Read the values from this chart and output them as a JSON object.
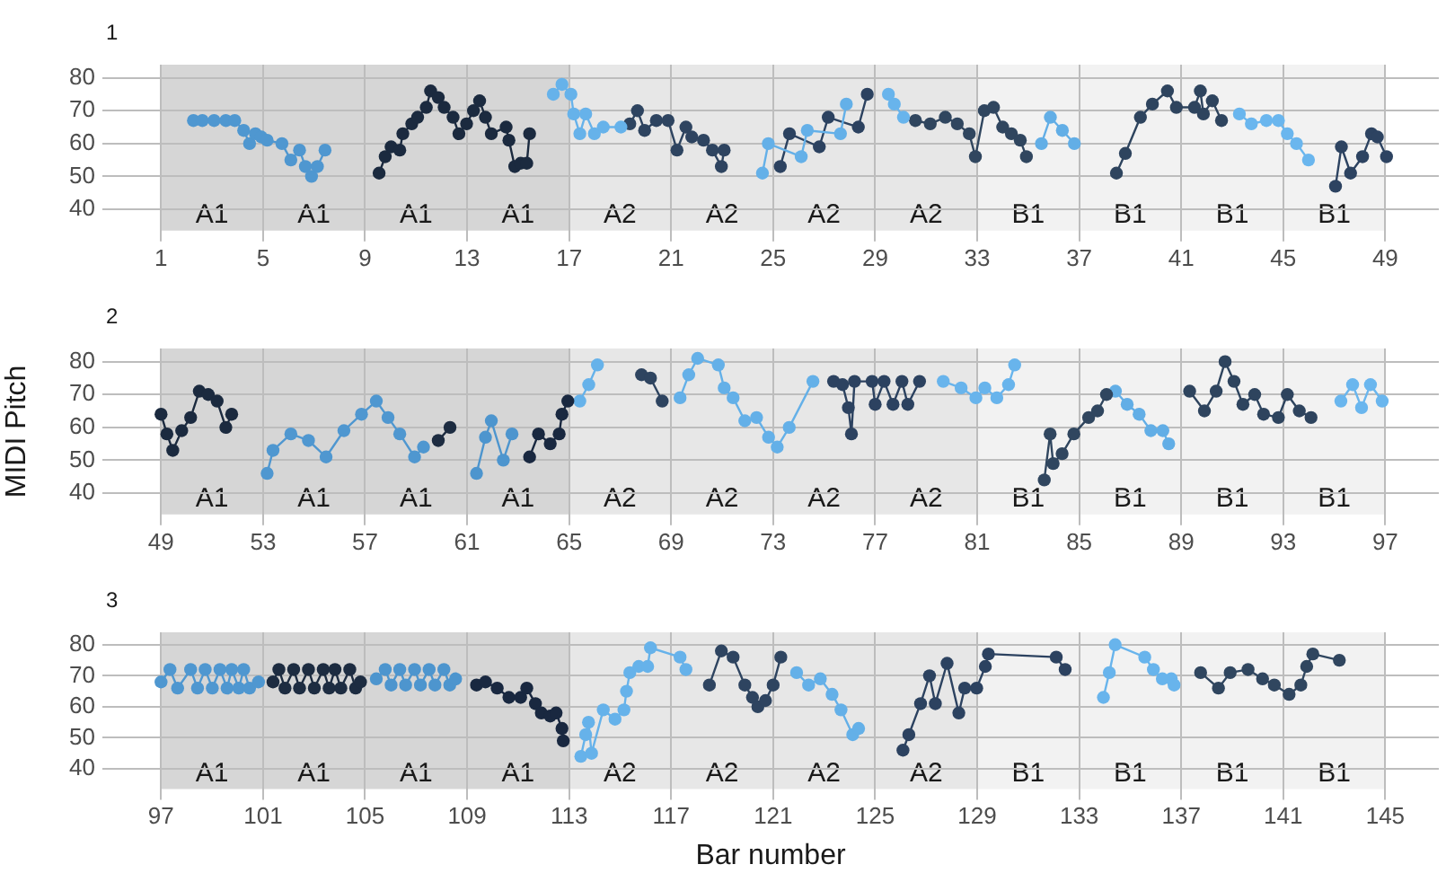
{
  "chart_data": [
    {
      "type": "line",
      "title": "1",
      "xlim": [
        -1.3,
        51.1
      ],
      "ylim": [
        33.5,
        84
      ],
      "xticks": [
        1,
        5,
        9,
        13,
        17,
        21,
        25,
        29,
        33,
        37,
        41,
        45,
        49
      ],
      "yticks": [
        40,
        50,
        60,
        70,
        80
      ],
      "grid": true,
      "marker": "circle",
      "line_style": "solid",
      "bands": [
        {
          "axis": "x",
          "from": 1,
          "to": 5,
          "label": "A1",
          "color": "#d6d6d6"
        },
        {
          "axis": "x",
          "from": 5,
          "to": 9,
          "label": "A1",
          "color": "#d6d6d6"
        },
        {
          "axis": "x",
          "from": 9,
          "to": 13,
          "label": "A1",
          "color": "#d6d6d6"
        },
        {
          "axis": "x",
          "from": 13,
          "to": 17,
          "label": "A1",
          "color": "#d6d6d6"
        },
        {
          "axis": "x",
          "from": 17,
          "to": 21,
          "label": "A2",
          "color": "#e7e7e7"
        },
        {
          "axis": "x",
          "from": 21,
          "to": 25,
          "label": "A2",
          "color": "#e7e7e7"
        },
        {
          "axis": "x",
          "from": 25,
          "to": 29,
          "label": "A2",
          "color": "#e7e7e7"
        },
        {
          "axis": "x",
          "from": 29,
          "to": 33,
          "label": "A2",
          "color": "#e7e7e7"
        },
        {
          "axis": "x",
          "from": 33,
          "to": 37,
          "label": "B1",
          "color": "#f2f2f2"
        },
        {
          "axis": "x",
          "from": 37,
          "to": 41,
          "label": "B1",
          "color": "#f2f2f2"
        },
        {
          "axis": "x",
          "from": 41,
          "to": 45,
          "label": "B1",
          "color": "#f2f2f2"
        },
        {
          "axis": "x",
          "from": 45,
          "to": 49,
          "label": "B1",
          "color": "#f2f2f2"
        }
      ],
      "series": [
        {
          "color": "#4f97d0",
          "x": [
            2.27,
            2.62,
            3.08,
            3.54,
            3.89,
            4.24,
            4.47,
            4.7,
            4.93,
            5.16,
            5.74,
            6.09,
            6.43,
            6.66,
            6.9,
            7.13,
            7.43
          ],
          "values": [
            67,
            67,
            67,
            67,
            67,
            64,
            60,
            63,
            62,
            61,
            60,
            55,
            58,
            53,
            50,
            53,
            58
          ]
        },
        {
          "color": "#1b2a3f",
          "x": [
            9.55,
            9.79,
            10.02,
            10.36,
            10.48,
            10.83,
            11.06,
            11.4,
            11.57,
            11.87,
            12.1,
            12.45,
            12.68,
            12.98,
            13.25,
            13.49,
            13.72,
            13.95,
            14.53,
            14.64,
            14.87,
            15.1,
            15.34,
            15.45
          ],
          "values": [
            51,
            56,
            59,
            58,
            63,
            66,
            68,
            71,
            76,
            74,
            71,
            68,
            63,
            66,
            70,
            73,
            68,
            63,
            65,
            61,
            53,
            54,
            54,
            63
          ]
        },
        {
          "color": "#66b2ea",
          "x": [
            16.38,
            16.72,
            17.07,
            17.18,
            17.42,
            17.65,
            17.99,
            18.34,
            19.03
          ],
          "values": [
            75,
            78,
            75,
            69,
            63,
            69,
            63,
            65,
            65
          ]
        },
        {
          "color": "#2e4460",
          "x": [
            19.38,
            19.68,
            19.96,
            20.42,
            20.88,
            21.23,
            21.58,
            21.81,
            22.27,
            22.62,
            22.97,
            23.08
          ],
          "values": [
            66,
            70,
            64,
            67,
            67,
            58,
            65,
            62,
            61,
            58,
            53,
            58
          ]
        },
        {
          "color": "#64b0e8",
          "x": [
            24.58,
            24.81,
            26.1,
            26.34,
            27.64,
            27.87
          ],
          "values": [
            51,
            60,
            56,
            64,
            63,
            72
          ]
        },
        {
          "color": "#2c4260",
          "x": [
            25.28,
            25.64,
            26.81,
            27.16,
            28.34,
            28.69
          ],
          "values": [
            53,
            63,
            59,
            68,
            65,
            75
          ]
        },
        {
          "color": "#68b4ec",
          "x": [
            29.52,
            29.75,
            30.11
          ],
          "values": [
            75,
            72,
            68
          ]
        },
        {
          "color": "#30465f",
          "x": [
            30.58,
            31.16,
            31.75,
            32.22,
            32.69,
            32.93,
            33.28,
            33.64,
            34.0,
            34.34,
            34.69,
            34.93
          ],
          "values": [
            67,
            66,
            68,
            66,
            63,
            56,
            70,
            71,
            65,
            63,
            61,
            56
          ]
        },
        {
          "color": "#62aee6",
          "x": [
            35.52,
            35.87,
            36.34,
            36.81
          ],
          "values": [
            60,
            68,
            64,
            60
          ]
        },
        {
          "color": "#2e445e",
          "x": [
            38.46,
            38.81,
            39.4,
            39.87,
            40.46,
            40.81,
            41.52,
            41.75,
            41.87,
            42.22,
            42.58
          ],
          "values": [
            51,
            57,
            68,
            72,
            76,
            71,
            71,
            76,
            69,
            73,
            67
          ]
        },
        {
          "color": "#6ab6ee",
          "x": [
            43.28,
            43.75,
            44.34,
            44.81,
            45.16,
            45.52,
            45.99
          ],
          "values": [
            69,
            66,
            67,
            67,
            63,
            60,
            55
          ]
        },
        {
          "color": "#2d4361",
          "x": [
            47.05,
            47.28,
            47.64,
            48.11,
            48.46,
            48.69,
            49.05
          ],
          "values": [
            47,
            59,
            51,
            56,
            63,
            62,
            56
          ]
        }
      ]
    },
    {
      "type": "line",
      "title": "2",
      "ylabel": "MIDI Pitch",
      "xlim": [
        46.7,
        99.1
      ],
      "ylim": [
        33.5,
        84
      ],
      "xticks": [
        49,
        53,
        57,
        61,
        65,
        69,
        73,
        77,
        81,
        85,
        89,
        93,
        97
      ],
      "yticks": [
        40,
        50,
        60,
        70,
        80
      ],
      "grid": true,
      "marker": "circle",
      "line_style": "solid",
      "bands": [
        {
          "axis": "x",
          "from": 49,
          "to": 53,
          "label": "A1",
          "color": "#d6d6d6"
        },
        {
          "axis": "x",
          "from": 53,
          "to": 57,
          "label": "A1",
          "color": "#d6d6d6"
        },
        {
          "axis": "x",
          "from": 57,
          "to": 61,
          "label": "A1",
          "color": "#d6d6d6"
        },
        {
          "axis": "x",
          "from": 61,
          "to": 65,
          "label": "A1",
          "color": "#d6d6d6"
        },
        {
          "axis": "x",
          "from": 65,
          "to": 69,
          "label": "A2",
          "color": "#e7e7e7"
        },
        {
          "axis": "x",
          "from": 69,
          "to": 73,
          "label": "A2",
          "color": "#e7e7e7"
        },
        {
          "axis": "x",
          "from": 73,
          "to": 77,
          "label": "A2",
          "color": "#e7e7e7"
        },
        {
          "axis": "x",
          "from": 77,
          "to": 81,
          "label": "A2",
          "color": "#e7e7e7"
        },
        {
          "axis": "x",
          "from": 81,
          "to": 85,
          "label": "B1",
          "color": "#f2f2f2"
        },
        {
          "axis": "x",
          "from": 85,
          "to": 89,
          "label": "B1",
          "color": "#f2f2f2"
        },
        {
          "axis": "x",
          "from": 89,
          "to": 93,
          "label": "B1",
          "color": "#f2f2f2"
        },
        {
          "axis": "x",
          "from": 93,
          "to": 97,
          "label": "B1",
          "color": "#f2f2f2"
        }
      ],
      "series": [
        {
          "color": "#1b2a3f",
          "x": [
            49,
            49.23,
            49.46,
            49.81,
            50.16,
            50.5,
            50.85,
            51.2,
            51.54,
            51.77
          ],
          "values": [
            64,
            58,
            53,
            59,
            63,
            71,
            70,
            68,
            60,
            64
          ]
        },
        {
          "color": "#4f97d0",
          "x": [
            53.16,
            53.39,
            54.09,
            54.78,
            55.47,
            56.17,
            56.86,
            57.44,
            57.9,
            58.36,
            58.94,
            59.29
          ],
          "values": [
            46,
            53,
            58,
            56,
            51,
            59,
            64,
            68,
            63,
            58,
            51,
            54
          ]
        },
        {
          "color": "#1d2c41",
          "x": [
            59.87,
            60.33
          ],
          "values": [
            56,
            60
          ]
        },
        {
          "color": "#4d95ce",
          "x": [
            61.37,
            61.72,
            61.95,
            62.42,
            62.76
          ],
          "values": [
            46,
            57,
            62,
            50,
            58
          ]
        },
        {
          "color": "#192840",
          "x": [
            63.45,
            63.8,
            64.26,
            64.61,
            64.72,
            64.95
          ],
          "values": [
            51,
            58,
            55,
            58,
            64,
            68
          ]
        },
        {
          "color": "#66b2ea",
          "x": [
            65.42,
            65.77,
            66.11
          ],
          "values": [
            68,
            73,
            79
          ]
        },
        {
          "color": "#2e4460",
          "x": [
            67.84,
            68.19,
            68.65
          ],
          "values": [
            76,
            75,
            68
          ]
        },
        {
          "color": "#64b0e8",
          "x": [
            69.35,
            69.69,
            70.04,
            70.85,
            71.08,
            71.43,
            71.89,
            72.35,
            72.82,
            73.16,
            73.63,
            74.56
          ],
          "values": [
            69,
            76,
            81,
            79,
            72,
            69,
            62,
            63,
            57,
            54,
            60,
            74
          ]
        },
        {
          "color": "#2c4260",
          "x": [
            75.37,
            75.72,
            75.95,
            76.07,
            76.19,
            76.88,
            77.0,
            77.35,
            77.7,
            78.05,
            78.28,
            78.74
          ],
          "values": [
            74,
            73,
            66,
            58,
            74,
            74,
            67,
            74,
            67,
            74,
            67,
            74
          ]
        },
        {
          "color": "#68b4ec",
          "x": [
            79.67,
            80.37,
            80.95,
            81.3,
            81.77,
            82.23,
            82.47
          ],
          "values": [
            74,
            72,
            69,
            72,
            69,
            73,
            79
          ]
        },
        {
          "color": "#30465f",
          "x": [
            83.63,
            83.86,
            83.98,
            84.33,
            84.79,
            85.37,
            85.72,
            86.07
          ],
          "values": [
            44,
            58,
            49,
            52,
            58,
            63,
            65,
            70
          ]
        },
        {
          "color": "#62aee6",
          "x": [
            86.42,
            86.88,
            87.35,
            87.81,
            88.28,
            88.51
          ],
          "values": [
            71,
            67,
            64,
            59,
            59,
            55
          ]
        },
        {
          "color": "#2e445e",
          "x": [
            89.33,
            89.91,
            90.37,
            90.72,
            91.07,
            91.42,
            91.88,
            92.23,
            92.81,
            93.16,
            93.63,
            94.09
          ],
          "values": [
            71,
            65,
            71,
            80,
            74,
            67,
            70,
            64,
            63,
            70,
            65,
            63
          ]
        },
        {
          "color": "#6ab6ee",
          "x": [
            95.26,
            95.72,
            96.07,
            96.42,
            96.88
          ],
          "values": [
            68,
            73,
            66,
            73,
            68
          ]
        }
      ]
    },
    {
      "type": "line",
      "title": "3",
      "xlabel": "Bar number",
      "xlim": [
        94.7,
        147.1
      ],
      "ylim": [
        33.5,
        84
      ],
      "xticks": [
        97,
        101,
        105,
        109,
        113,
        117,
        121,
        125,
        129,
        133,
        137,
        141,
        145
      ],
      "yticks": [
        40,
        50,
        60,
        70,
        80
      ],
      "grid": true,
      "marker": "circle",
      "line_style": "solid",
      "bands": [
        {
          "axis": "x",
          "from": 97,
          "to": 101,
          "label": "A1",
          "color": "#d6d6d6"
        },
        {
          "axis": "x",
          "from": 101,
          "to": 105,
          "label": "A1",
          "color": "#d6d6d6"
        },
        {
          "axis": "x",
          "from": 105,
          "to": 109,
          "label": "A1",
          "color": "#d6d6d6"
        },
        {
          "axis": "x",
          "from": 109,
          "to": 113,
          "label": "A1",
          "color": "#d6d6d6"
        },
        {
          "axis": "x",
          "from": 113,
          "to": 117,
          "label": "A2",
          "color": "#e7e7e7"
        },
        {
          "axis": "x",
          "from": 117,
          "to": 121,
          "label": "A2",
          "color": "#e7e7e7"
        },
        {
          "axis": "x",
          "from": 121,
          "to": 125,
          "label": "A2",
          "color": "#e7e7e7"
        },
        {
          "axis": "x",
          "from": 125,
          "to": 129,
          "label": "A2",
          "color": "#e7e7e7"
        },
        {
          "axis": "x",
          "from": 129,
          "to": 133,
          "label": "B1",
          "color": "#f2f2f2"
        },
        {
          "axis": "x",
          "from": 133,
          "to": 137,
          "label": "B1",
          "color": "#f2f2f2"
        },
        {
          "axis": "x",
          "from": 137,
          "to": 141,
          "label": "B1",
          "color": "#f2f2f2"
        },
        {
          "axis": "x",
          "from": 141,
          "to": 145,
          "label": "B1",
          "color": "#f2f2f2"
        }
      ],
      "series": [
        {
          "color": "#4f97d0",
          "x": [
            97,
            97.35,
            97.65,
            98.16,
            98.43,
            98.73,
            99.01,
            99.31,
            99.59,
            99.77,
            100.05,
            100.24,
            100.47,
            100.82
          ],
          "values": [
            68,
            72,
            66,
            72,
            66,
            72,
            66,
            72,
            66,
            72,
            66,
            72,
            66,
            68
          ]
        },
        {
          "color": "#1d2c41",
          "x": [
            101.39,
            101.62,
            101.86,
            102.2,
            102.43,
            102.78,
            103.01,
            103.36,
            103.59,
            103.82,
            104.05,
            104.4,
            104.63,
            104.82
          ],
          "values": [
            68,
            72,
            66,
            72,
            66,
            72,
            66,
            72,
            66,
            72,
            66,
            72,
            66,
            68
          ]
        },
        {
          "color": "#4d95ce",
          "x": [
            105.44,
            105.79,
            106.02,
            106.36,
            106.59,
            106.94,
            107.17,
            107.51,
            107.74,
            108.09,
            108.32,
            108.55
          ],
          "values": [
            69,
            72,
            67,
            72,
            67,
            72,
            67,
            72,
            67,
            72,
            67,
            69
          ]
        },
        {
          "color": "#192840",
          "x": [
            109.37,
            109.72,
            110.18,
            110.64,
            111.1,
            111.34,
            111.68,
            111.91,
            112.26,
            112.49,
            112.72,
            112.77
          ],
          "values": [
            67,
            68,
            66,
            63,
            63,
            66,
            61,
            58,
            57,
            58,
            53,
            49
          ]
        },
        {
          "color": "#66b2ea",
          "x": [
            113.46,
            113.65,
            113.76,
            113.88,
            114.34,
            114.8,
            115.15,
            115.25,
            115.38,
            115.73,
            116.08,
            116.19,
            117.35,
            117.58
          ],
          "values": [
            44,
            51,
            55,
            45,
            59,
            56,
            59,
            65,
            71,
            73,
            73,
            79,
            76,
            72
          ]
        },
        {
          "color": "#2e4460",
          "x": [
            118.5,
            118.97,
            119.43,
            119.89,
            120.19,
            120.4,
            120.7,
            121.0,
            121.3
          ],
          "values": [
            67,
            78,
            76,
            67,
            63,
            60,
            62,
            67,
            76
          ]
        },
        {
          "color": "#64b0e8",
          "x": [
            121.92,
            122.39,
            122.85,
            123.31,
            123.66,
            124.12,
            124.35
          ],
          "values": [
            71,
            67,
            69,
            64,
            59,
            51,
            53
          ]
        },
        {
          "color": "#2c4260",
          "x": [
            126.09,
            126.32,
            126.78,
            127.13,
            127.36,
            127.82,
            128.28,
            128.51,
            128.98,
            129.32,
            129.44,
            132.1,
            132.45
          ],
          "values": [
            46,
            51,
            61,
            70,
            61,
            74,
            58,
            66,
            66,
            73,
            77,
            76,
            72
          ]
        },
        {
          "color": "#68b4ec",
          "x": [
            133.95,
            134.18,
            134.41,
            135.57,
            135.91,
            136.26,
            136.61,
            136.72
          ],
          "values": [
            63,
            71,
            80,
            76,
            72,
            69,
            69,
            67
          ]
        },
        {
          "color": "#30465f",
          "x": [
            137.76,
            138.46,
            138.92,
            139.62,
            140.19,
            140.65,
            141.23,
            141.69,
            141.92,
            142.16,
            143.2
          ],
          "values": [
            71,
            66,
            71,
            72,
            69,
            67,
            64,
            67,
            73,
            77,
            75
          ]
        }
      ]
    }
  ]
}
